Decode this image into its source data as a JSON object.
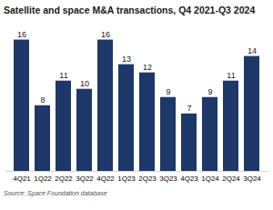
{
  "chart_data": {
    "type": "bar",
    "title": "Satellite and space M&A transactions, Q4 2021-Q3 2024",
    "caption": "Source: Space Foundation database",
    "categories": [
      "4Q21",
      "1Q22",
      "2Q22",
      "3Q22",
      "4Q22",
      "1Q23",
      "2Q23",
      "3Q23",
      "4Q23",
      "1Q24",
      "2Q24",
      "3Q24"
    ],
    "values": [
      16,
      8,
      11,
      10,
      16,
      13,
      12,
      9,
      7,
      9,
      11,
      14
    ],
    "color": "#1d3868",
    "ylim": [
      0,
      17.5
    ],
    "data_labels": true,
    "tick_labels": "x",
    "grid": false
  }
}
